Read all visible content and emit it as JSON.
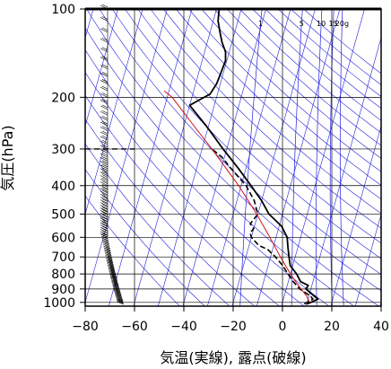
{
  "chart_data": {
    "type": "line",
    "subtype": "skew-t thermodynamic diagram",
    "xlabel": "気温(実線), 露点(破線)",
    "ylabel": "気圧(hPa)",
    "xlim": [
      -80,
      40
    ],
    "ylim": [
      1030,
      100
    ],
    "y_scale": "log",
    "x_ticks": [
      -80,
      -60,
      -40,
      -20,
      0,
      20,
      40
    ],
    "x_tick_labels": [
      "−80",
      "−60",
      "−40",
      "−20",
      "0",
      "20",
      "40"
    ],
    "y_ticks": [
      100,
      200,
      300,
      400,
      500,
      600,
      700,
      800,
      900,
      1000
    ],
    "y_tick_labels": [
      "100",
      "200",
      "300",
      "400",
      "500",
      "600",
      "700",
      "800",
      "900",
      "1000"
    ],
    "grid": true,
    "mixing_ratio_labels": [
      "1",
      "5",
      "10",
      "15",
      "20g"
    ],
    "mixing_ratio_values": [
      1,
      5,
      10,
      15,
      20
    ],
    "colors": {
      "temperature": "#000000",
      "dewpoint": "#000000",
      "parcel": "#d01010",
      "isotherm_and_adiabat": "#2020dd",
      "grid": "#000000",
      "wind_barbs": "#000000",
      "tropopause_line": "#000000"
    },
    "series": [
      {
        "name": "気温",
        "style": "solid",
        "points": [
          {
            "p": 1013,
            "t": 10
          },
          {
            "p": 1000,
            "t": 11.5
          },
          {
            "p": 975,
            "t": 14
          },
          {
            "p": 950,
            "t": 12
          },
          {
            "p": 925,
            "t": 10
          },
          {
            "p": 900,
            "t": 8
          },
          {
            "p": 875,
            "t": 8.5
          },
          {
            "p": 850,
            "t": 5
          },
          {
            "p": 800,
            "t": 2.5
          },
          {
            "p": 750,
            "t": -1
          },
          {
            "p": 700,
            "t": -2.5
          },
          {
            "p": 650,
            "t": -4
          },
          {
            "p": 600,
            "t": -5.5
          },
          {
            "p": 550,
            "t": -9
          },
          {
            "p": 500,
            "t": -15.5
          },
          {
            "p": 450,
            "t": -20
          },
          {
            "p": 400,
            "t": -26
          },
          {
            "p": 350,
            "t": -33
          },
          {
            "p": 300,
            "t": -41.5
          },
          {
            "p": 250,
            "t": -51
          },
          {
            "p": 213,
            "t": -60
          },
          {
            "p": 205,
            "t": -57
          },
          {
            "p": 195,
            "t": -53
          },
          {
            "p": 180,
            "t": -51.5
          },
          {
            "p": 165,
            "t": -51
          },
          {
            "p": 150,
            "t": -50.5
          },
          {
            "p": 140,
            "t": -51.5
          },
          {
            "p": 130,
            "t": -54
          },
          {
            "p": 120,
            "t": -56
          },
          {
            "p": 110,
            "t": -58
          },
          {
            "p": 100,
            "t": -59
          }
        ]
      },
      {
        "name": "露点",
        "style": "dashed",
        "points": [
          {
            "p": 1013,
            "t": 9
          },
          {
            "p": 1000,
            "t": 10
          },
          {
            "p": 975,
            "t": 12
          },
          {
            "p": 950,
            "t": 10.5
          },
          {
            "p": 925,
            "t": 8
          },
          {
            "p": 900,
            "t": 5.5
          },
          {
            "p": 850,
            "t": 2
          },
          {
            "p": 800,
            "t": -1
          },
          {
            "p": 750,
            "t": -4
          },
          {
            "p": 700,
            "t": -8
          },
          {
            "p": 660,
            "t": -12
          },
          {
            "p": 640,
            "t": -16
          },
          {
            "p": 620,
            "t": -18
          },
          {
            "p": 600,
            "t": -20
          },
          {
            "p": 580,
            "t": -21
          },
          {
            "p": 560,
            "t": -20
          },
          {
            "p": 540,
            "t": -22
          },
          {
            "p": 520,
            "t": -21
          },
          {
            "p": 500,
            "t": -20
          },
          {
            "p": 450,
            "t": -23
          },
          {
            "p": 400,
            "t": -28
          },
          {
            "p": 350,
            "t": -36
          },
          {
            "p": 320,
            "t": -41
          },
          {
            "p": 300,
            "t": -46
          }
        ]
      },
      {
        "name": "",
        "style": "solid-thin",
        "points": [
          {
            "p": 1000,
            "t": 11
          },
          {
            "p": 950,
            "t": 9
          },
          {
            "p": 900,
            "t": 6
          },
          {
            "p": 850,
            "t": 3
          },
          {
            "p": 800,
            "t": 0
          },
          {
            "p": 700,
            "t": -6
          },
          {
            "p": 600,
            "t": -12.5
          },
          {
            "p": 500,
            "t": -20.5
          },
          {
            "p": 400,
            "t": -31
          },
          {
            "p": 300,
            "t": -46
          },
          {
            "p": 250,
            "t": -56
          },
          {
            "p": 200,
            "t": -68
          },
          {
            "p": 190,
            "t": -72
          }
        ]
      }
    ],
    "tropopause_pressure": 300
  }
}
